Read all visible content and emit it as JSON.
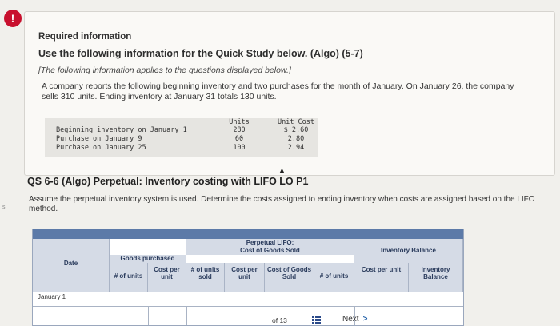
{
  "alert_glyph": "!",
  "required_info": "Required information",
  "use_info": "Use the following information for the Quick Study below. (Algo) (5-7)",
  "applies_note": "[The following information applies to the questions displayed below.]",
  "description": "A company reports the following beginning inventory and two purchases for the month of January. On January 26, the company sells 310 units. Ending inventory at January 31 totals 130 units.",
  "inventory_data": {
    "header_units": "Units",
    "header_cost": "Unit Cost",
    "rows": [
      {
        "desc": "Beginning inventory on January 1",
        "units": "280",
        "cost": "$ 2.60"
      },
      {
        "desc": "Purchase on January 9",
        "units": "60",
        "cost": "2.80"
      },
      {
        "desc": "Purchase on January 25",
        "units": "100",
        "cost": "2.94"
      }
    ]
  },
  "question": {
    "title": "QS 6-6 (Algo) Perpetual: Inventory costing with LIFO LO P1",
    "instructions": "Assume the perpetual inventory system is used. Determine the costs assigned to ending inventory when costs are assigned based on the LIFO method."
  },
  "table": {
    "perpetual_lifo": "Perpetual LIFO:",
    "cost_goods_sold": "Cost of Goods Sold",
    "goods_purchased": "Goods purchased",
    "inventory_balance": "Inventory Balance",
    "col_date": "Date",
    "col_units_purchased": "# of units",
    "col_cost_per_unit": "Cost per unit",
    "col_units_sold": "# of units sold",
    "col_cost_per_unit_sold": "Cost per unit",
    "col_cost_goods_sold": "Cost of Goods Sold",
    "col_units_balance": "# of units",
    "col_cost_per_unit_balance": "Cost per unit",
    "col_inventory_balance": "Inventory Balance",
    "row_january_1": "January 1"
  },
  "navigation": {
    "page_of": "of 13",
    "next_label": "Next"
  }
}
